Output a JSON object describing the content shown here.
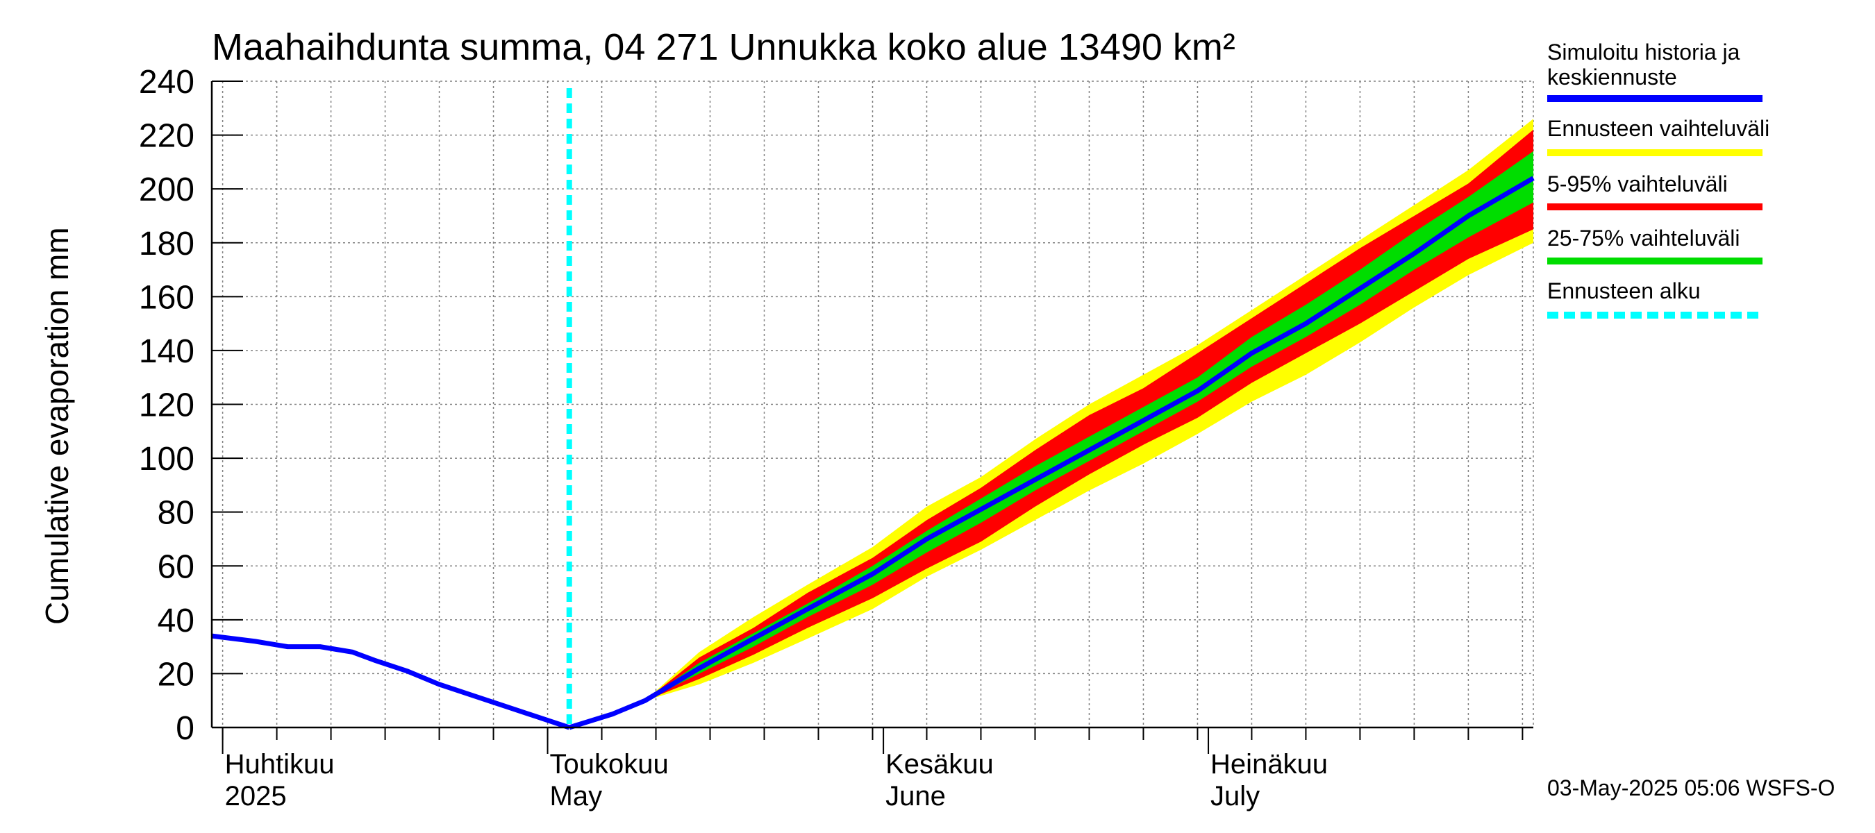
{
  "chart_data": {
    "type": "area",
    "title": "Maahaihdunta summa, 04 271 Unnukka koko alue 13490 km²",
    "ylabel": "Cumulative evaporation   mm",
    "xlabel": "",
    "ylim": [
      0,
      240
    ],
    "yticks": [
      0,
      20,
      40,
      60,
      80,
      100,
      120,
      140,
      160,
      180,
      200,
      220,
      240
    ],
    "xlim": [
      "2025-03-31",
      "2025-07-31"
    ],
    "grid": true,
    "month_labels": [
      {
        "date": "2025-04-01",
        "line1": "Huhtikuu",
        "line2": "2025"
      },
      {
        "date": "2025-05-01",
        "line1": "Toukokuu",
        "line2": "May"
      },
      {
        "date": "2025-06-01",
        "line1": "Kesäkuu",
        "line2": "June"
      },
      {
        "date": "2025-07-01",
        "line1": "Heinäkuu",
        "line2": "July"
      }
    ],
    "forecast_start": "2025-05-03",
    "history": {
      "name": "Simuloitu historia ja keskiennuste",
      "color": "#0000ff",
      "x": [
        "2025-03-31",
        "2025-04-02",
        "2025-04-04",
        "2025-04-07",
        "2025-04-10",
        "2025-04-13",
        "2025-04-15",
        "2025-04-18",
        "2025-04-21",
        "2025-04-24",
        "2025-04-27",
        "2025-04-30",
        "2025-05-03"
      ],
      "y": [
        34,
        33,
        32,
        30,
        30,
        28,
        25,
        21,
        16,
        12,
        8,
        4,
        0
      ]
    },
    "forecast_mean": {
      "x": [
        "2025-05-03",
        "2025-05-07",
        "2025-05-10",
        "2025-05-15",
        "2025-05-20",
        "2025-05-25",
        "2025-05-31",
        "2025-06-05",
        "2025-06-10",
        "2025-06-15",
        "2025-06-20",
        "2025-06-25",
        "2025-06-30",
        "2025-07-05",
        "2025-07-10",
        "2025-07-15",
        "2025-07-20",
        "2025-07-25",
        "2025-07-31"
      ],
      "y": [
        0,
        5,
        10,
        22,
        33,
        44,
        57,
        70,
        81,
        92,
        103,
        114,
        125,
        139,
        150,
        163,
        176,
        190,
        204
      ]
    },
    "bands": [
      {
        "name": "Ennusteen vaihteluväli",
        "color": "#ffff00",
        "x": [
          "2025-05-10",
          "2025-05-15",
          "2025-05-20",
          "2025-05-25",
          "2025-05-31",
          "2025-06-05",
          "2025-06-10",
          "2025-06-15",
          "2025-06-20",
          "2025-06-25",
          "2025-06-30",
          "2025-07-05",
          "2025-07-10",
          "2025-07-15",
          "2025-07-20",
          "2025-07-25",
          "2025-07-31"
        ],
        "low": [
          10,
          16,
          24,
          33,
          44,
          56,
          66,
          77,
          88,
          98,
          109,
          121,
          131,
          143,
          156,
          168,
          180
        ],
        "high": [
          10,
          28,
          41,
          53,
          67,
          82,
          93,
          107,
          120,
          131,
          142,
          155,
          168,
          181,
          194,
          207,
          226
        ]
      },
      {
        "name": "5-95% vaihteluväli",
        "color": "#ff0000",
        "x": [
          "2025-05-10",
          "2025-05-15",
          "2025-05-20",
          "2025-05-25",
          "2025-05-31",
          "2025-06-05",
          "2025-06-10",
          "2025-06-15",
          "2025-06-20",
          "2025-06-25",
          "2025-06-30",
          "2025-07-05",
          "2025-07-10",
          "2025-07-15",
          "2025-07-20",
          "2025-07-25",
          "2025-07-31"
        ],
        "low": [
          10,
          18,
          27,
          37,
          48,
          59,
          69,
          82,
          94,
          105,
          115,
          128,
          139,
          150,
          162,
          174,
          185
        ],
        "high": [
          10,
          26,
          37,
          50,
          63,
          77,
          89,
          103,
          116,
          126,
          139,
          152,
          165,
          178,
          190,
          202,
          222
        ]
      },
      {
        "name": "25-75% vaihteluväli",
        "color": "#00dd00",
        "x": [
          "2025-05-10",
          "2025-05-15",
          "2025-05-20",
          "2025-05-25",
          "2025-05-31",
          "2025-06-05",
          "2025-06-10",
          "2025-06-15",
          "2025-06-20",
          "2025-06-25",
          "2025-06-30",
          "2025-07-05",
          "2025-07-10",
          "2025-07-15",
          "2025-07-20",
          "2025-07-25",
          "2025-07-31"
        ],
        "low": [
          10,
          20,
          30,
          41,
          53,
          65,
          76,
          88,
          99,
          110,
          121,
          134,
          145,
          157,
          170,
          182,
          195
        ],
        "high": [
          10,
          24,
          35,
          46,
          60,
          73,
          85,
          97,
          108,
          119,
          130,
          145,
          157,
          170,
          184,
          197,
          214
        ]
      }
    ],
    "legend": [
      {
        "label": "Simuloitu historia ja keskiennuste",
        "color": "#0000ff",
        "style": "solid"
      },
      {
        "label": "Ennusteen vaihteluväli",
        "color": "#ffff00",
        "style": "solid"
      },
      {
        "label": "5-95% vaihteluväli",
        "color": "#ff0000",
        "style": "solid"
      },
      {
        "label": "25-75% vaihteluväli",
        "color": "#00dd00",
        "style": "solid"
      },
      {
        "label": "Ennusteen alku",
        "color": "#00ffff",
        "style": "dashed"
      }
    ],
    "legend_position": "right",
    "footer": "03-May-2025 05:06 WSFS-O"
  }
}
